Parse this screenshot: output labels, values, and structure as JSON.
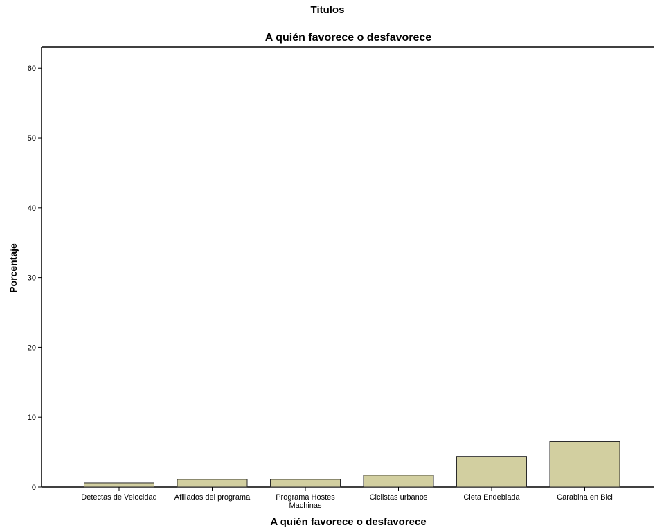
{
  "chart_data": {
    "type": "bar",
    "title": "Titulos",
    "subtitle": "A quién favorece o desfavorece",
    "xlabel": "A quién favorece o desfavorece",
    "ylabel": "Porcentaje",
    "ylim": [
      0,
      63
    ],
    "yticks": [
      0,
      10,
      20,
      30,
      40,
      50,
      60
    ],
    "categories": [
      [
        "Detectas de Velocidad"
      ],
      [
        "Afiliados del programa"
      ],
      [
        "Programa Hostes",
        "Machinas"
      ],
      [
        "Ciclistas urbanos"
      ],
      [
        "Cleta Endeblada"
      ],
      [
        "Carabina en Bici"
      ]
    ],
    "values": [
      0.6,
      1.1,
      1.1,
      1.7,
      4.4,
      6.5
    ],
    "grid": false,
    "legend": "none",
    "colors": {
      "bar_fill": "#d2cfa0",
      "bar_stroke": "#2a2a2a",
      "axis": "#000000"
    }
  }
}
